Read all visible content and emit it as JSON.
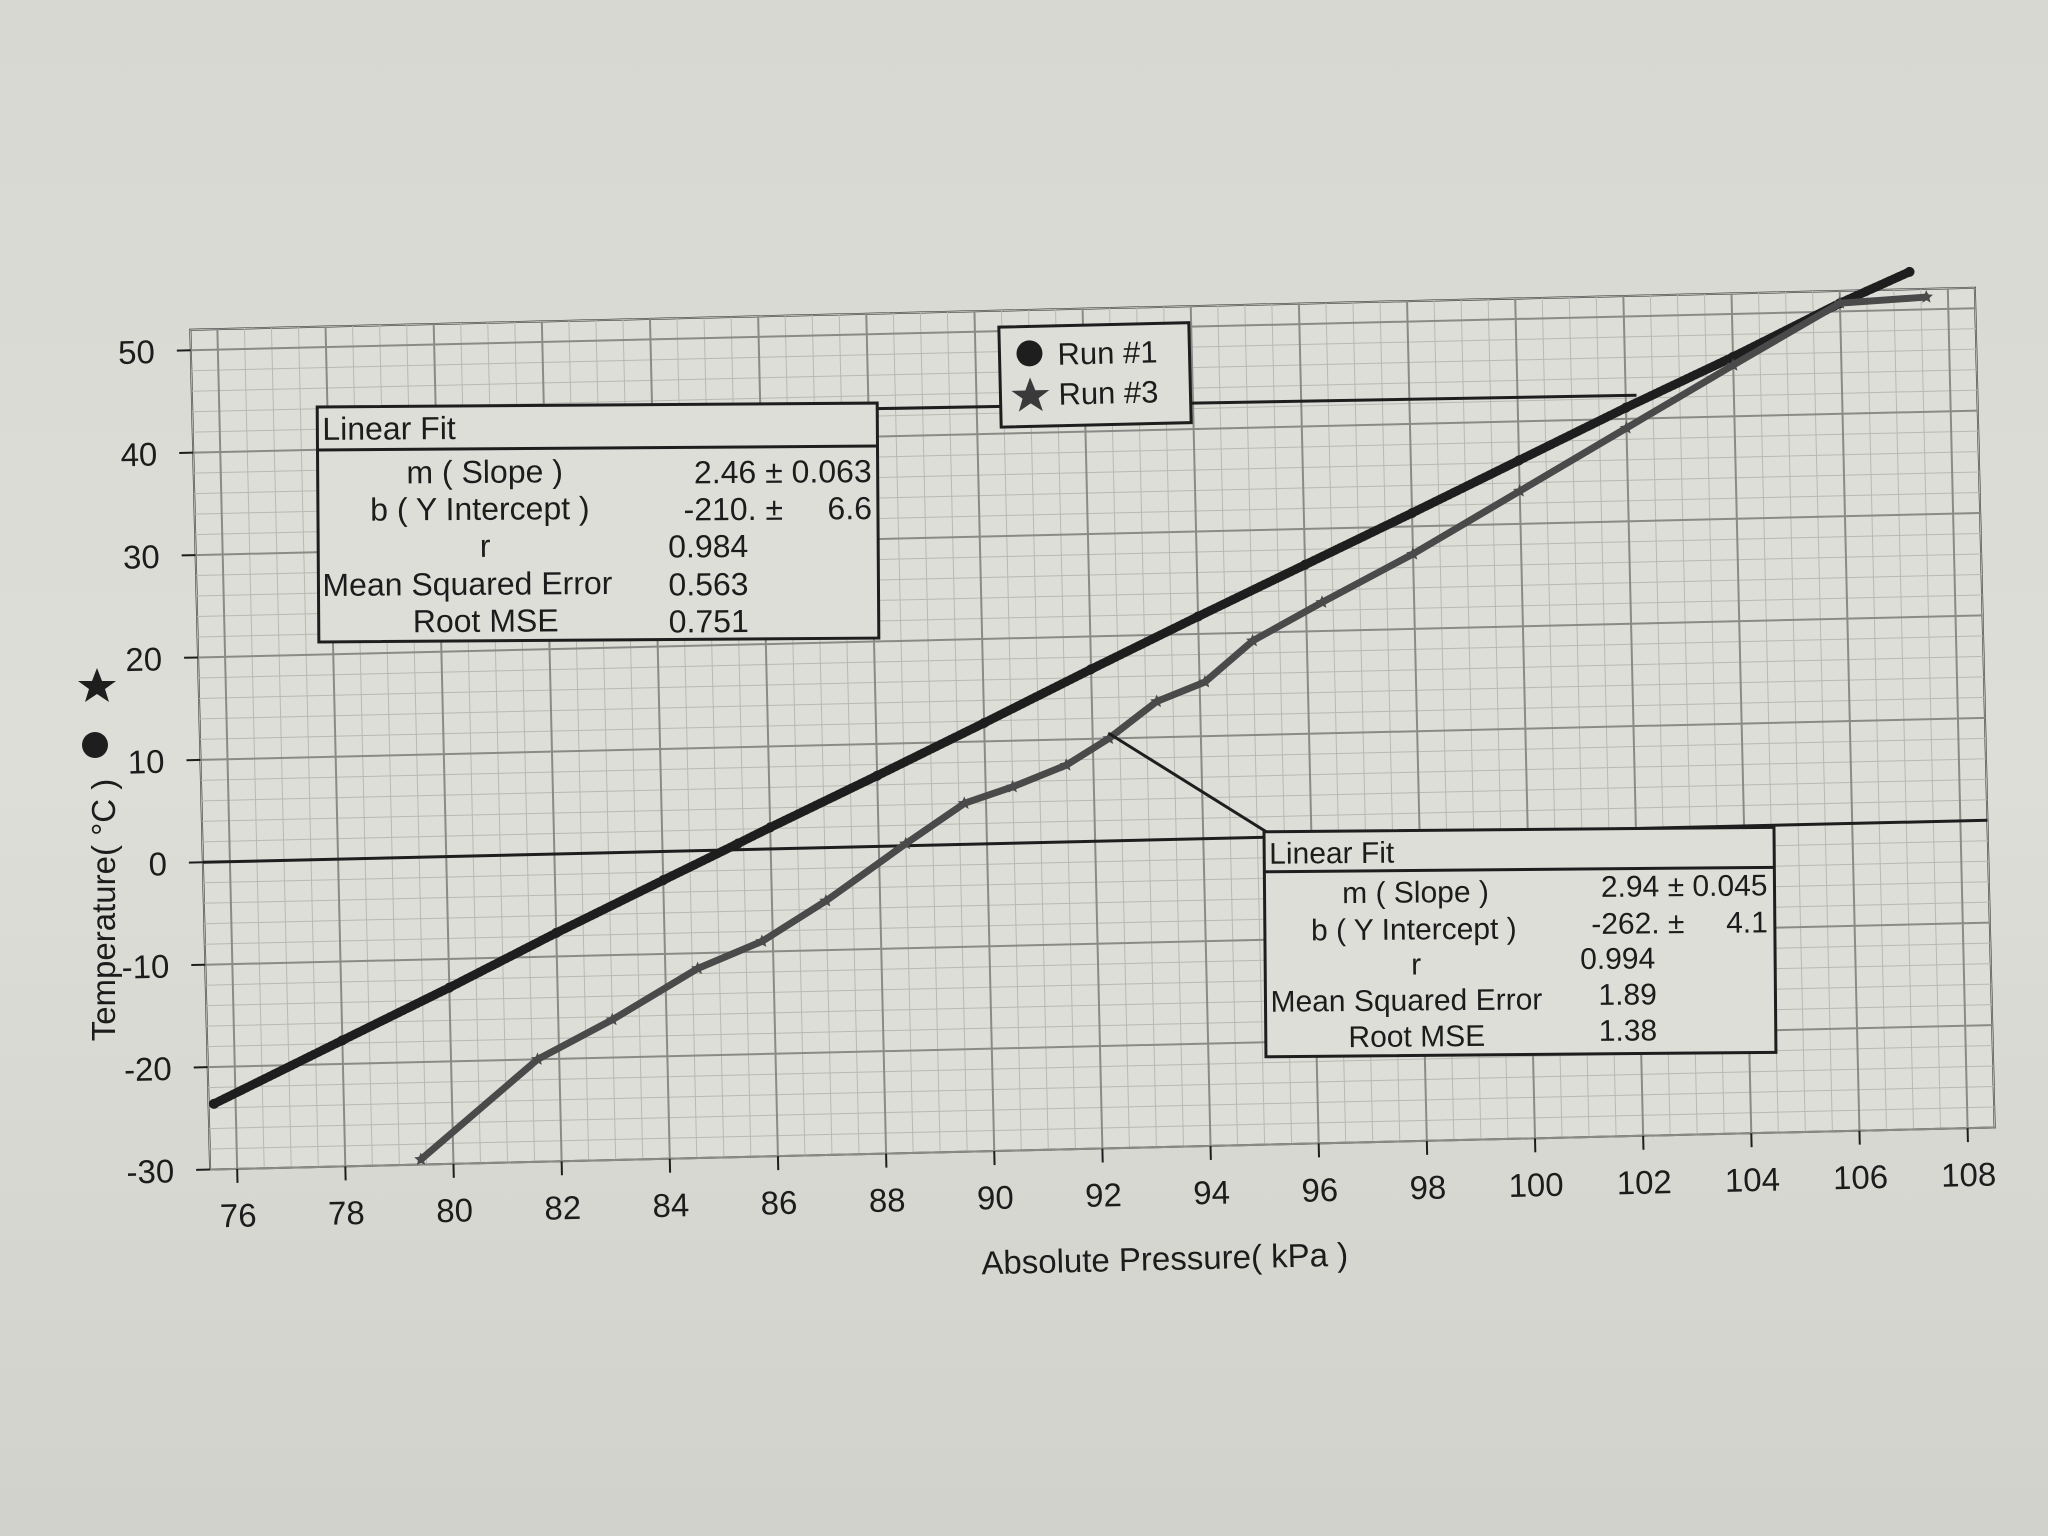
{
  "chart_data": {
    "type": "scatter",
    "xlabel": "Absolute Pressure( kPa )",
    "ylabel": "Temperature( °C )",
    "xlim": [
      75.5,
      108.5
    ],
    "ylim": [
      -30,
      52
    ],
    "x_ticks": [
      76,
      78,
      80,
      82,
      84,
      86,
      88,
      90,
      92,
      94,
      96,
      98,
      100,
      102,
      104,
      106,
      108
    ],
    "y_ticks": [
      50,
      40,
      30,
      20,
      10,
      0,
      -10,
      -20,
      -30
    ],
    "grid": true,
    "legend_position": "top-center",
    "series": [
      {
        "name": "Run #1",
        "marker": "circle",
        "color": "#1e1e1e",
        "x": [
          75.6,
          78,
          80,
          82,
          84,
          85.4,
          86,
          88,
          90,
          92,
          94,
          96,
          98,
          100,
          102,
          104,
          106,
          107.3
        ],
        "y": [
          -23.6,
          -17.7,
          -12.8,
          -7.7,
          -2.8,
          0.6,
          2.1,
          6.9,
          11.8,
          16.8,
          21.7,
          26.5,
          31.3,
          36.2,
          41.1,
          45.8,
          50.8,
          53.7
        ],
        "fit": {
          "title": "Linear Fit",
          "rows": [
            {
              "label": "m ( Slope )",
              "value": "2.46 ± 0.063"
            },
            {
              "label": "b ( Y Intercept )",
              "value": "-210. ±     6.6"
            },
            {
              "label": "r",
              "value": "0.984"
            },
            {
              "label": "Mean Squared Error",
              "value": "0.563"
            },
            {
              "label": "Root MSE",
              "value": "0.751"
            }
          ]
        }
      },
      {
        "name": "Run #3",
        "marker": "star",
        "color": "#4a4a4a",
        "x": [
          79.4,
          81.6,
          83,
          84.6,
          85.8,
          87,
          88.5,
          89.6,
          90.5,
          91.5,
          92.3,
          93.2,
          94.1,
          95,
          96.3,
          98,
          100,
          102,
          104,
          106,
          107.6
        ],
        "y": [
          -29.5,
          -20,
          -16.3,
          -11.5,
          -9,
          -5.2,
          0.2,
          4,
          5.5,
          7.5,
          10,
          13.5,
          15.3,
          19.2,
          22.8,
          27.3,
          33.2,
          39.1,
          45,
          50.8,
          51.2
        ],
        "fit": {
          "title": "Linear Fit",
          "rows": [
            {
              "label": "m ( Slope )",
              "value": "2.94 ± 0.045"
            },
            {
              "label": "b ( Y Intercept )",
              "value": "-262. ±     4.1"
            },
            {
              "label": "r",
              "value": "0.994"
            },
            {
              "label": "Mean Squared Error",
              "value": "1.89"
            },
            {
              "label": "Root MSE",
              "value": "1.38"
            }
          ]
        }
      }
    ]
  }
}
